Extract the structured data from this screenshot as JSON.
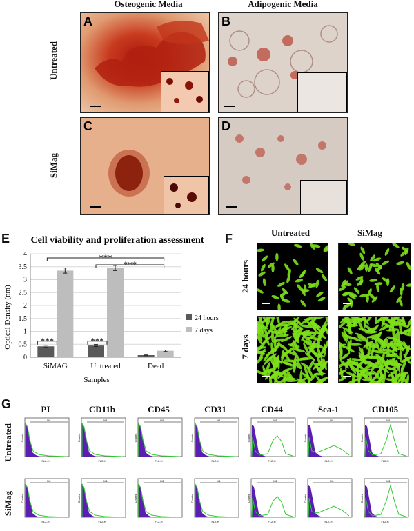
{
  "figure": {
    "top": {
      "col_headers": [
        "Osteogenic Media",
        "Adipogenic  Media"
      ],
      "row_labels": [
        "Untreated",
        "SiMag"
      ],
      "panel_letters": [
        "A",
        "B",
        "C",
        "D"
      ],
      "colors": {
        "osteo": "#c8501e",
        "adipo": "#d9cfc6",
        "stain": "#b84032"
      }
    },
    "panel_e": {
      "letter": "E"
    },
    "panel_f": {
      "letter": "F",
      "col_headers": [
        "Untreated",
        "SiMag"
      ],
      "row_labels": [
        "24 hours",
        "7 days"
      ],
      "colors": {
        "cells": "#7de01a",
        "background": "#020402"
      }
    },
    "panel_g": {
      "letter": "G",
      "markers": [
        "PI",
        "CD11b",
        "CD45",
        "CD31",
        "CD44",
        "Sca-1",
        "CD105"
      ],
      "row_labels": [
        "Untreated",
        "SiMag"
      ],
      "gate_label": "M1",
      "axis_x_label": "FL2-H",
      "axis_y_label": "Counts",
      "colors": {
        "filled": "#5a1fb0",
        "outline": "#2fc92f"
      }
    }
  },
  "chart_data": {
    "type": "bar",
    "title": "Cell viability and proliferation assessment",
    "xlabel": "Samples",
    "ylabel": "Optical Density (nm)",
    "categories": [
      "SiMAG",
      "Untreated",
      "Dead"
    ],
    "series": [
      {
        "name": "24 hours",
        "values": [
          0.42,
          0.45,
          0.08
        ],
        "errors": [
          0.04,
          0.04,
          0.02
        ],
        "color": "#595959"
      },
      {
        "name": "7 days",
        "values": [
          3.35,
          3.45,
          0.25
        ],
        "errors": [
          0.1,
          0.1,
          0.03
        ],
        "color": "#bdbdbd"
      }
    ],
    "ylim": [
      0,
      4
    ],
    "yticks": [
      "0",
      "0.5",
      "1",
      "1.5",
      "2",
      "2.5",
      "3",
      "3.5",
      "4"
    ],
    "grid": true,
    "legend_position": "right",
    "annotations": [
      "***",
      "***",
      "***",
      "***"
    ]
  }
}
